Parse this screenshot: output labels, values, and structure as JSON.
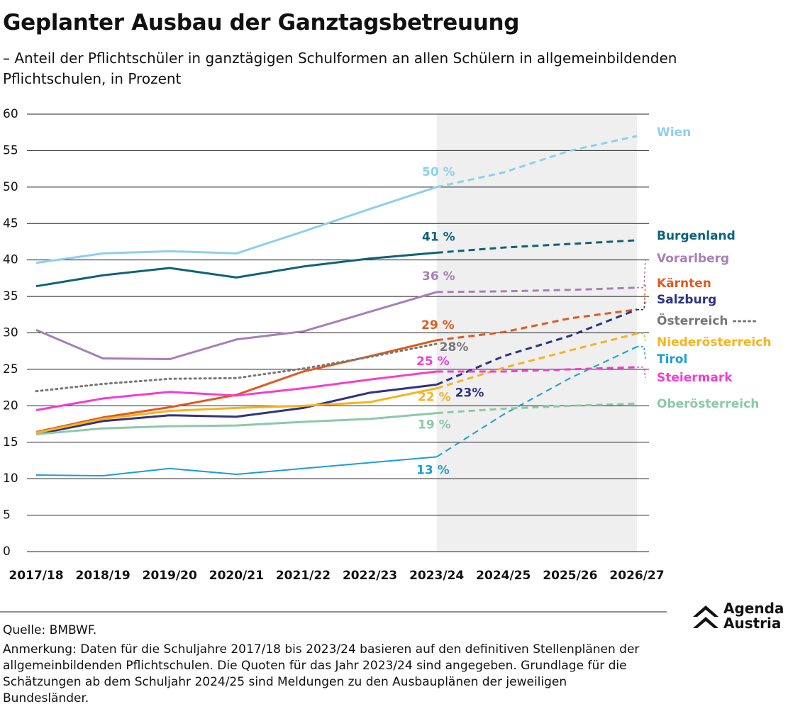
{
  "chart_data": {
    "type": "line",
    "title": "Geplanter Ausbau der Ganztagsbetreuung",
    "subtitle": "– Anteil der Pflichtschüler in ganztägigen Schulformen an allen Schülern in allgemeinbildenden Pflichtschulen, in Prozent",
    "categories": [
      "2017/18",
      "2018/19",
      "2019/20",
      "2020/21",
      "2021/22",
      "2022/23",
      "2023/24",
      "2024/25",
      "2025/26",
      "2026/27"
    ],
    "forecast_start": "2023/24",
    "ylim": [
      0,
      60
    ],
    "yticks": [
      0,
      5,
      10,
      15,
      20,
      25,
      30,
      35,
      40,
      45,
      50,
      55,
      60
    ],
    "grid": true,
    "series": [
      {
        "name": "Wien",
        "color": "#8dcfee",
        "values": [
          39.6,
          40.9,
          41.2,
          40.9,
          43.9,
          47,
          50,
          52,
          55,
          57
        ],
        "value_labels": [
          null,
          null,
          null,
          null,
          null,
          null,
          "50 %",
          null,
          null,
          null
        ]
      },
      {
        "name": "Burgenland",
        "color": "#0e6378",
        "values": [
          36.4,
          37.9,
          38.9,
          37.6,
          39.1,
          40.2,
          41,
          41.7,
          42.2,
          42.7
        ],
        "value_labels": [
          null,
          null,
          null,
          null,
          null,
          null,
          "41 %",
          null,
          null,
          null
        ]
      },
      {
        "name": "Vorarlberg",
        "color": "#a77fb8",
        "values": [
          30.4,
          26.5,
          26.4,
          29.1,
          30.2,
          32.9,
          35.6,
          35.7,
          35.9,
          36.2
        ],
        "value_labels": [
          null,
          null,
          null,
          null,
          null,
          null,
          "36 %",
          null,
          null,
          null
        ]
      },
      {
        "name": "Kärnten",
        "color": "#e05a1e",
        "values": [
          16.4,
          18.4,
          19.8,
          21.5,
          24.7,
          26.8,
          29,
          30.1,
          32,
          33.2
        ],
        "value_labels": [
          null,
          null,
          null,
          null,
          null,
          null,
          "29 %",
          null,
          null,
          null
        ]
      },
      {
        "name": "Salzburg",
        "color": "#2e3384",
        "values": [
          16.1,
          17.9,
          18.7,
          18.5,
          19.7,
          21.8,
          22.9,
          26.8,
          29.6,
          33.2
        ],
        "value_labels": [
          null,
          null,
          null,
          null,
          null,
          null,
          "23%",
          null,
          null,
          null
        ]
      },
      {
        "name": "Österreich",
        "color": "#777777",
        "values": [
          22,
          23,
          23.7,
          23.8,
          25.1,
          26.7,
          28.5,
          null,
          null,
          null
        ],
        "value_labels": [
          null,
          null,
          null,
          null,
          null,
          null,
          "28%",
          null,
          null,
          null
        ]
      },
      {
        "name": "Niederösterreich",
        "color": "#f6b31e",
        "values": [
          16.3,
          18.2,
          19.3,
          19.7,
          20,
          20.5,
          22.4,
          25.2,
          27.6,
          29.9
        ],
        "value_labels": [
          null,
          null,
          null,
          null,
          null,
          null,
          "22 %",
          null,
          null,
          null
        ]
      },
      {
        "name": "Tirol",
        "color": "#1a9ed9",
        "values": [
          10.5,
          10.4,
          11.4,
          10.6,
          11.4,
          12.2,
          13,
          18.8,
          23.8,
          28.1
        ],
        "value_labels": [
          null,
          null,
          null,
          null,
          null,
          null,
          "13 %",
          null,
          null,
          null
        ]
      },
      {
        "name": "Steiermark",
        "color": "#f23dd6",
        "values": [
          19.4,
          21,
          21.9,
          21.4,
          22.4,
          23.6,
          24.7,
          24.7,
          25,
          25.3
        ],
        "value_labels": [
          null,
          null,
          null,
          null,
          null,
          null,
          "25 %",
          null,
          null,
          null
        ]
      },
      {
        "name": "Oberösterreich",
        "color": "#8cc9a8",
        "values": [
          16.1,
          16.9,
          17.2,
          17.3,
          17.8,
          18.2,
          19,
          19.6,
          20,
          20.3
        ],
        "value_labels": [
          null,
          null,
          null,
          null,
          null,
          null,
          "19 %",
          null,
          null,
          null
        ]
      }
    ],
    "source": "Quelle: BMBWF.",
    "note": "Anmerkung: Daten für die Schuljahre 2017/18 bis 2023/24 basieren auf den definitiven Stellenplänen der allgemeinbildenden Pflichtschulen. Die Quoten für das Jahr 2023/24 sind angegeben. Grundlage für die Schätzungen ab dem Schuljahr 2024/25 sind Meldungen zu den Ausbauplänen der jeweiligen Bundesländer.",
    "logo": [
      "Agenda",
      "Austria"
    ]
  }
}
